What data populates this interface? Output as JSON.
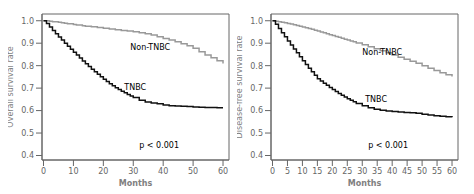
{
  "chart_data": [
    {
      "type": "step",
      "xlabel": "Months",
      "ylabel": "Overall survival rate",
      "xlim": [
        -0.5,
        62
      ],
      "ylim": [
        0.38,
        1.03
      ],
      "xticks": [
        0,
        10,
        20,
        30,
        40,
        50,
        60
      ],
      "yticks": [
        0.4,
        0.5,
        0.6,
        0.7,
        0.8,
        0.9,
        {
          "value": 1,
          "label": "1.0"
        }
      ],
      "series": [
        {
          "color": "#999999",
          "x": [
            0,
            2,
            3,
            5,
            6,
            7,
            8,
            10,
            11,
            13,
            14,
            16,
            18,
            20,
            22,
            24,
            26,
            28,
            30,
            32,
            34,
            36,
            38,
            40,
            42,
            44,
            46,
            48,
            50,
            52,
            54,
            56,
            58,
            60
          ],
          "values": [
            1.0,
            0.998,
            0.996,
            0.993,
            0.991,
            0.989,
            0.987,
            0.983,
            0.981,
            0.978,
            0.976,
            0.973,
            0.97,
            0.967,
            0.963,
            0.96,
            0.957,
            0.954,
            0.951,
            0.947,
            0.942,
            0.936,
            0.929,
            0.921,
            0.914,
            0.907,
            0.898,
            0.889,
            0.878,
            0.862,
            0.848,
            0.835,
            0.822,
            0.81
          ]
        },
        {
          "color": "#111111",
          "x": [
            0,
            1,
            2,
            3,
            4,
            5,
            6,
            7,
            8,
            9,
            10,
            11,
            12,
            13,
            14,
            15,
            16,
            17,
            18,
            19,
            20,
            21,
            22,
            23,
            24,
            25,
            26,
            27,
            28,
            29,
            30,
            32,
            34,
            36,
            38,
            40,
            42,
            44,
            46,
            48,
            50,
            52,
            54,
            56,
            58,
            60
          ],
          "values": [
            1.0,
            0.988,
            0.972,
            0.957,
            0.942,
            0.928,
            0.914,
            0.9,
            0.886,
            0.873,
            0.86,
            0.847,
            0.834,
            0.821,
            0.808,
            0.796,
            0.784,
            0.773,
            0.762,
            0.751,
            0.74,
            0.73,
            0.72,
            0.711,
            0.702,
            0.694,
            0.686,
            0.679,
            0.672,
            0.665,
            0.658,
            0.646,
            0.638,
            0.634,
            0.63,
            0.625,
            0.622,
            0.62,
            0.619,
            0.618,
            0.616,
            0.615,
            0.614,
            0.614,
            0.613,
            0.613
          ]
        }
      ],
      "annotations": [
        {
          "text": "Non-TNBC",
          "x": 29,
          "y": 0.883
        },
        {
          "text": "TNBC",
          "x": 27,
          "y": 0.705
        },
        {
          "text": "p < 0.001"
        }
      ]
    },
    {
      "type": "step",
      "xlabel": "Months",
      "ylabel": "Disease-free survival rate",
      "xlim": [
        -0.5,
        62
      ],
      "ylim": [
        0.38,
        1.03
      ],
      "xticks": [
        0,
        5,
        10,
        15,
        20,
        25,
        30,
        35,
        40,
        45,
        50,
        55,
        60
      ],
      "yticks": [
        0.4,
        0.5,
        0.6,
        0.7,
        0.8,
        0.9,
        {
          "value": 1,
          "label": "1.0"
        }
      ],
      "series": [
        {
          "color": "#999999",
          "x": [
            0,
            1,
            2,
            3,
            4,
            5,
            6,
            7,
            8,
            9,
            10,
            11,
            12,
            13,
            14,
            15,
            16,
            17,
            18,
            19,
            20,
            21,
            22,
            23,
            24,
            25,
            26,
            27,
            28,
            30,
            32,
            34,
            36,
            38,
            40,
            42,
            44,
            46,
            48,
            50,
            52,
            54,
            56,
            58,
            60
          ],
          "values": [
            1.0,
            0.998,
            0.996,
            0.993,
            0.991,
            0.988,
            0.985,
            0.982,
            0.979,
            0.976,
            0.972,
            0.969,
            0.965,
            0.962,
            0.958,
            0.954,
            0.95,
            0.946,
            0.942,
            0.938,
            0.934,
            0.93,
            0.926,
            0.922,
            0.918,
            0.914,
            0.91,
            0.906,
            0.901,
            0.893,
            0.884,
            0.875,
            0.866,
            0.857,
            0.847,
            0.838,
            0.829,
            0.82,
            0.811,
            0.8,
            0.789,
            0.779,
            0.769,
            0.76,
            0.752
          ]
        },
        {
          "color": "#111111",
          "x": [
            0,
            1,
            2,
            3,
            4,
            5,
            6,
            7,
            8,
            9,
            10,
            11,
            12,
            13,
            14,
            15,
            16,
            17,
            18,
            19,
            20,
            21,
            22,
            23,
            24,
            25,
            26,
            27,
            28,
            30,
            32,
            34,
            36,
            38,
            40,
            42,
            44,
            46,
            48,
            50,
            52,
            54,
            56,
            58,
            60
          ],
          "values": [
            1.0,
            0.984,
            0.965,
            0.947,
            0.929,
            0.91,
            0.892,
            0.874,
            0.857,
            0.84,
            0.822,
            0.805,
            0.789,
            0.773,
            0.757,
            0.742,
            0.732,
            0.722,
            0.713,
            0.703,
            0.694,
            0.685,
            0.676,
            0.668,
            0.66,
            0.653,
            0.646,
            0.639,
            0.632,
            0.622,
            0.613,
            0.606,
            0.601,
            0.598,
            0.596,
            0.594,
            0.592,
            0.59,
            0.588,
            0.584,
            0.58,
            0.577,
            0.575,
            0.573,
            0.57
          ]
        }
      ],
      "annotations": [
        {
          "text": "Non-TNBC",
          "x": 30,
          "y": 0.862
        },
        {
          "text": "TNBC",
          "x": 31,
          "y": 0.653
        },
        {
          "text": "p < 0.001"
        }
      ]
    }
  ]
}
